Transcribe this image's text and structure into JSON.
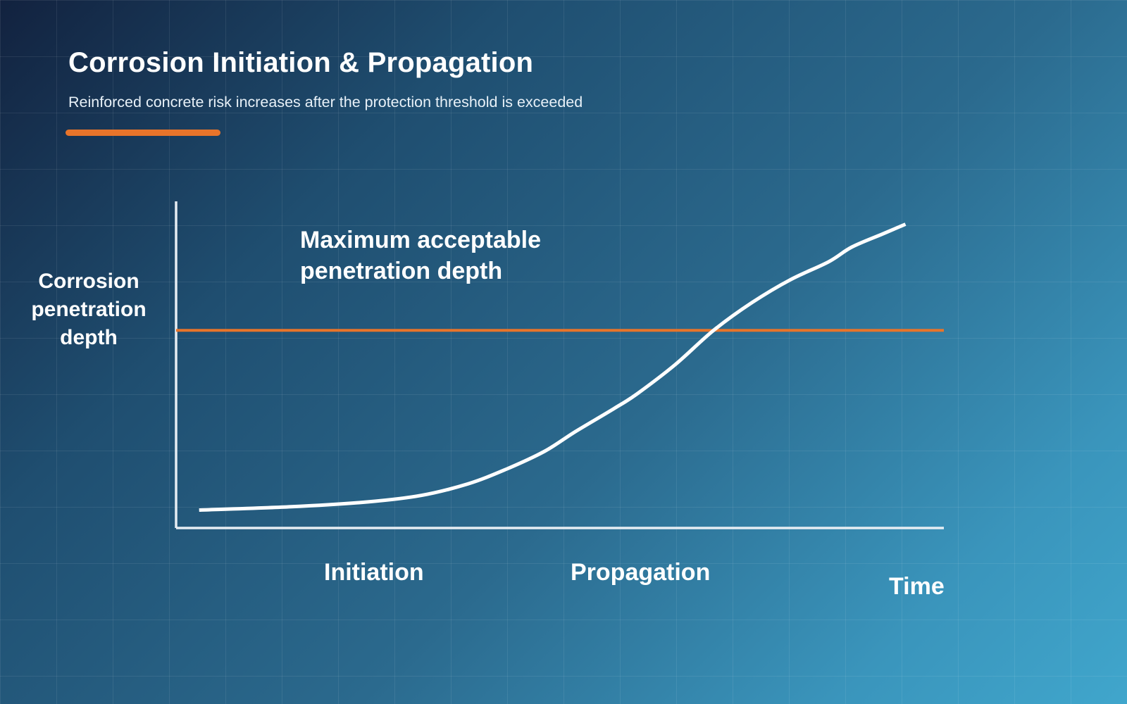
{
  "header": {
    "title": "Corrosion Initiation & Propagation",
    "subtitle": "Reinforced concrete risk increases after the protection threshold is exceeded"
  },
  "colors": {
    "accent": "#e8742a",
    "curve": "#ffffff",
    "axis": "#e6edf3",
    "background_dark": "#12223f",
    "background_light": "#40a6cc"
  },
  "chart_data": {
    "type": "line",
    "title": "",
    "xlabel": "Time",
    "ylabel": "Corrosion\npenetration\ndepth",
    "xlim": [
      0,
      100
    ],
    "ylim": [
      0,
      100
    ],
    "ticks_shown": false,
    "grid": false,
    "series": [
      {
        "x": [
          3,
          15,
          25,
          32,
          38,
          43,
          48,
          52,
          57,
          60,
          65,
          70,
          75,
          80,
          85,
          88,
          92,
          95
        ],
        "y": [
          5.5,
          6.5,
          8,
          10,
          13.5,
          18,
          23.5,
          29.5,
          36.5,
          41,
          50,
          60.5,
          69,
          76,
          81.5,
          86,
          90,
          93
        ]
      }
    ],
    "threshold": {
      "y": 60.5,
      "label": "Maximum acceptable\npenetration depth"
    },
    "phases": [
      {
        "label": "Initiation",
        "center": 26
      },
      {
        "label": "Propagation",
        "center": 61
      }
    ]
  }
}
